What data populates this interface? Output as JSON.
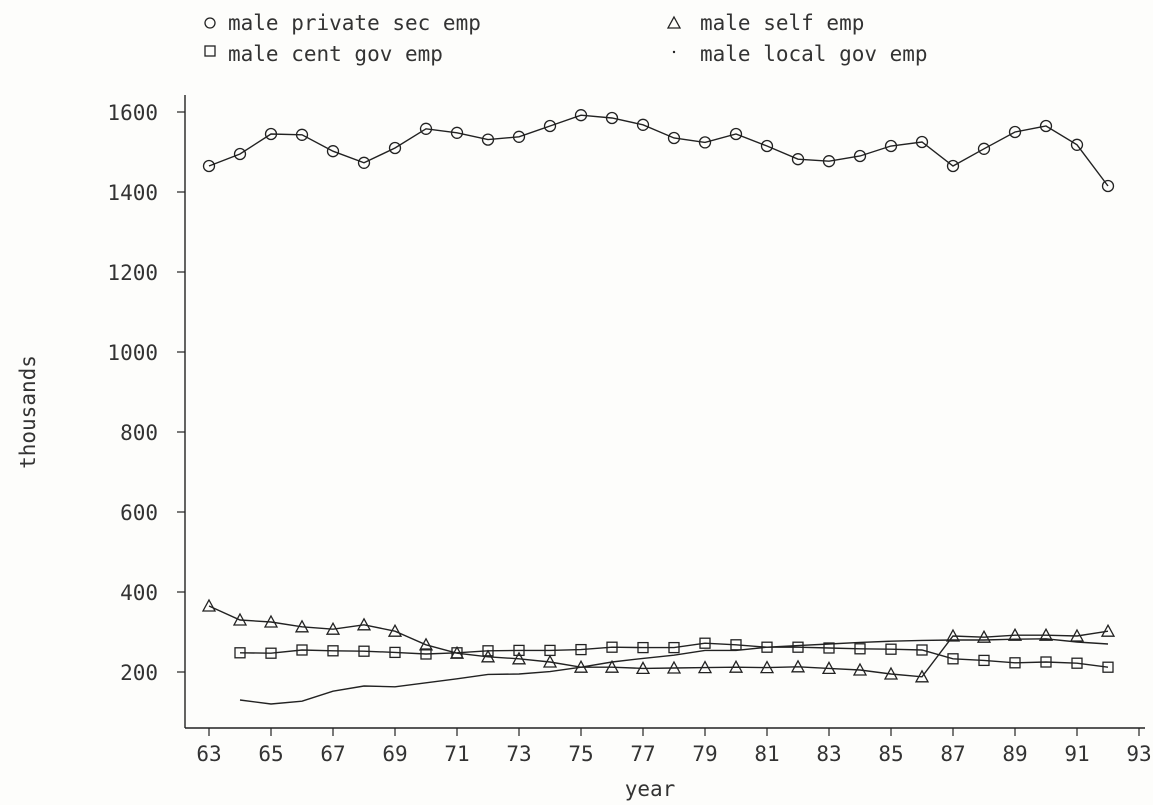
{
  "chart_data": {
    "type": "line",
    "xlabel": "year",
    "ylabel": "thousands",
    "xlim": [
      63,
      93
    ],
    "ylim": [
      100,
      1650
    ],
    "xticks": [
      "63",
      "65",
      "67",
      "69",
      "71",
      "73",
      "75",
      "77",
      "79",
      "81",
      "83",
      "85",
      "87",
      "89",
      "91",
      "93"
    ],
    "yticks": [
      "200",
      "400",
      "600",
      "800",
      "1000",
      "1200",
      "1400",
      "1600"
    ],
    "legend": [
      {
        "label": "male private sec emp",
        "marker": "circle"
      },
      {
        "label": "male self emp",
        "marker": "triangle"
      },
      {
        "label": "male cent gov emp",
        "marker": "square"
      },
      {
        "label": "male local gov emp",
        "marker": "dot"
      }
    ],
    "series": [
      {
        "name": "male private sec emp",
        "marker": "circle",
        "x": [
          63,
          64,
          65,
          66,
          67,
          68,
          69,
          70,
          71,
          72,
          73,
          74,
          75,
          76,
          77,
          78,
          79,
          80,
          81,
          82,
          83,
          84,
          85,
          86,
          87,
          88,
          89,
          90,
          91,
          92
        ],
        "values": [
          1465,
          1495,
          1545,
          1543,
          1502,
          1473,
          1510,
          1558,
          1548,
          1531,
          1538,
          1565,
          1592,
          1585,
          1568,
          1535,
          1524,
          1545,
          1515,
          1482,
          1477,
          1490,
          1515,
          1525,
          1465,
          1508,
          1550,
          1565,
          1518,
          1415
        ]
      },
      {
        "name": "male self emp",
        "marker": "triangle",
        "x": [
          63,
          64,
          65,
          66,
          67,
          68,
          69,
          70,
          71,
          72,
          73,
          74,
          75,
          76,
          77,
          78,
          79,
          80,
          81,
          82,
          83,
          84,
          85,
          86,
          87,
          88,
          89,
          90,
          91,
          92
        ],
        "values": [
          365,
          330,
          325,
          313,
          307,
          318,
          302,
          268,
          247,
          238,
          233,
          225,
          212,
          212,
          209,
          210,
          211,
          212,
          211,
          213,
          209,
          205,
          195,
          188,
          290,
          287,
          292,
          292,
          290,
          302
        ]
      },
      {
        "name": "male cent gov emp",
        "marker": "square",
        "x": [
          64,
          65,
          66,
          67,
          68,
          69,
          70,
          71,
          72,
          73,
          74,
          75,
          76,
          77,
          78,
          79,
          80,
          81,
          82,
          83,
          84,
          85,
          86,
          87,
          88,
          89,
          90,
          91,
          92
        ],
        "values": [
          248,
          247,
          255,
          253,
          252,
          249,
          245,
          248,
          253,
          254,
          254,
          256,
          262,
          261,
          261,
          272,
          268,
          262,
          262,
          260,
          258,
          257,
          255,
          233,
          229,
          223,
          225,
          222,
          212
        ]
      },
      {
        "name": "male local gov emp",
        "marker": "none",
        "x": [
          64,
          65,
          66,
          67,
          68,
          69,
          70,
          71,
          72,
          73,
          74,
          75,
          76,
          77,
          78,
          79,
          80,
          81,
          82,
          83,
          84,
          85,
          86,
          87,
          88,
          89,
          90,
          91,
          92
        ],
        "values": [
          130,
          120,
          127,
          152,
          165,
          163,
          173,
          183,
          194,
          195,
          201,
          212,
          225,
          234,
          242,
          254,
          254,
          262,
          266,
          270,
          274,
          277,
          279,
          280,
          280,
          282,
          283,
          275,
          270
        ]
      }
    ]
  }
}
